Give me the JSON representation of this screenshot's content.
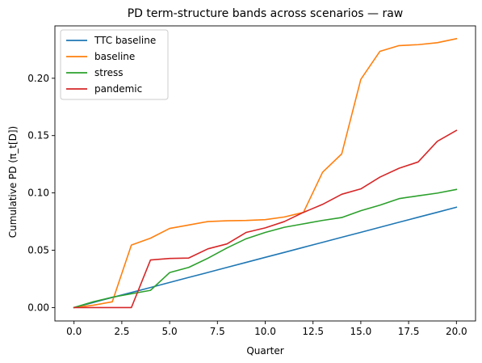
{
  "chart_data": {
    "type": "line",
    "title": "PD term-structure bands across scenarios — raw",
    "xlabel": "Quarter",
    "ylabel": "Cumulative PD (π_t[D])",
    "xlim": [
      -1,
      21
    ],
    "ylim": [
      -0.0117,
      0.2457
    ],
    "x_ticks": [
      0.0,
      2.5,
      5.0,
      7.5,
      10.0,
      12.5,
      15.0,
      17.5,
      20.0
    ],
    "x_tick_labels": [
      "0.0",
      "2.5",
      "5.0",
      "7.5",
      "10.0",
      "12.5",
      "15.0",
      "17.5",
      "20.0"
    ],
    "y_ticks": [
      0.0,
      0.05,
      0.1,
      0.15,
      0.2
    ],
    "y_tick_labels": [
      "0.00",
      "0.05",
      "0.10",
      "0.15",
      "0.20"
    ],
    "grid": false,
    "legend_position": "upper-left",
    "x": [
      0,
      1,
      2,
      3,
      4,
      5,
      6,
      7,
      8,
      9,
      10,
      11,
      12,
      13,
      14,
      15,
      16,
      17,
      18,
      19,
      20
    ],
    "series": [
      {
        "name": "TTC baseline",
        "color": "#1f77b4",
        "values": [
          0.0,
          0.0044,
          0.0088,
          0.0131,
          0.0175,
          0.0219,
          0.0263,
          0.0306,
          0.035,
          0.0394,
          0.0438,
          0.0481,
          0.0525,
          0.0569,
          0.0613,
          0.0656,
          0.07,
          0.0744,
          0.0788,
          0.0831,
          0.0875
        ]
      },
      {
        "name": "baseline",
        "color": "#ff7f0e",
        "values": [
          0.0,
          0.002,
          0.005,
          0.0545,
          0.0605,
          0.069,
          0.072,
          0.075,
          0.0757,
          0.076,
          0.0767,
          0.079,
          0.083,
          0.118,
          0.134,
          0.199,
          0.2235,
          0.2285,
          0.2293,
          0.231,
          0.2345
        ]
      },
      {
        "name": "stress",
        "color": "#2ca02c",
        "values": [
          0.0,
          0.005,
          0.009,
          0.012,
          0.015,
          0.0305,
          0.035,
          0.043,
          0.052,
          0.06,
          0.0655,
          0.07,
          0.073,
          0.076,
          0.0785,
          0.0845,
          0.0893,
          0.095,
          0.0975,
          0.0998,
          0.103
        ]
      },
      {
        "name": "pandemic",
        "color": "#d62728",
        "values": [
          0.0,
          0.0,
          0.0,
          0.0,
          0.0415,
          0.0428,
          0.0432,
          0.0512,
          0.0555,
          0.0655,
          0.0695,
          0.075,
          0.083,
          0.09,
          0.0988,
          0.1035,
          0.1138,
          0.1215,
          0.127,
          0.145,
          0.1545
        ]
      }
    ]
  }
}
